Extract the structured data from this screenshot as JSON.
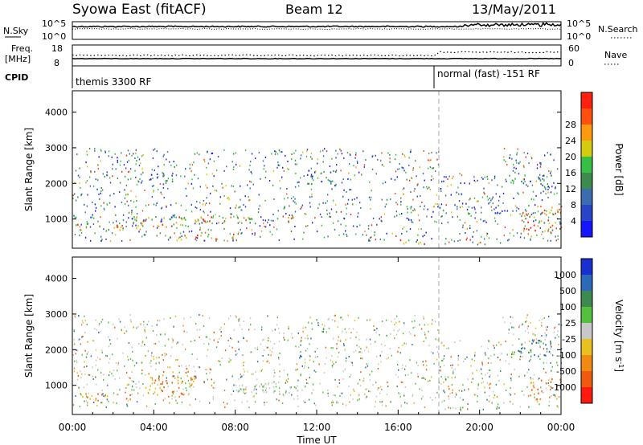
{
  "header": {
    "station": "Syowa East (fitACF)",
    "beam": "Beam 12",
    "date": "13/May/2011"
  },
  "top_panels": {
    "nsky_label": "N.Sky",
    "nsky_ticks": [
      "10^5",
      "10^0"
    ],
    "nsearch_label": "N.Search",
    "nsearch_ticks": [
      "10^5",
      "10^0"
    ],
    "freq_label_1": "Freq.",
    "freq_label_2": "[MHz]",
    "freq_ticks": [
      "18",
      "8"
    ],
    "nave_label": "Nave",
    "nave_ticks": [
      "60",
      "0"
    ],
    "cpid_label": "CPID",
    "cpid_segments": [
      {
        "label": "themis 3300 RF",
        "start_hour": 0,
        "end_hour": 18
      },
      {
        "label": "normal (fast) -151 RF",
        "start_hour": 18,
        "end_hour": 24
      }
    ]
  },
  "chart_data": [
    {
      "type": "heatmap",
      "name": "power",
      "ylabel": "Slant Range [km]",
      "xlabel": "",
      "yticks": [
        1000,
        2000,
        3000,
        4000
      ],
      "ylim": [
        180,
        4600
      ],
      "xlim": [
        0,
        24
      ],
      "colorbar_label": "Power [dB]",
      "colorbar_ticks": [
        4,
        8,
        12,
        16,
        20,
        24,
        28
      ],
      "colorbar_colors": [
        "#1515ff",
        "#2a44c8",
        "#3b6cb0",
        "#3c8a4c",
        "#35c045",
        "#d4cc10",
        "#ff9a10",
        "#ff5010",
        "#ff2010"
      ],
      "vertical_marker_hour": 18,
      "echo_regions": [
        {
          "t0": 0.0,
          "t1": 3.5,
          "r0": 700,
          "r1": 900,
          "level": "high"
        },
        {
          "t0": 3.0,
          "t1": 7.0,
          "r0": 800,
          "r1": 1100,
          "level": "high"
        },
        {
          "t0": 4.5,
          "t1": 8.0,
          "r0": 400,
          "r1": 600,
          "level": "high"
        },
        {
          "t0": 6.0,
          "t1": 11.0,
          "r0": 900,
          "r1": 1100,
          "level": "high"
        },
        {
          "t0": 3.5,
          "t1": 5.0,
          "r0": 2000,
          "r1": 2300,
          "level": "medium"
        },
        {
          "t0": 11.5,
          "t1": 13.0,
          "r0": 2000,
          "r1": 2400,
          "level": "medium"
        },
        {
          "t0": 16.0,
          "t1": 18.0,
          "r0": 300,
          "r1": 450,
          "level": "high"
        },
        {
          "t0": 22.0,
          "t1": 24.0,
          "r0": 600,
          "r1": 1400,
          "level": "high"
        },
        {
          "t0": 21.5,
          "t1": 23.5,
          "r0": 2000,
          "r1": 2300,
          "level": "medium"
        }
      ]
    },
    {
      "type": "heatmap",
      "name": "velocity",
      "ylabel": "Slant Range [km]",
      "xlabel": "Time UT",
      "yticks": [
        1000,
        2000,
        3000,
        4000
      ],
      "ylim": [
        180,
        4600
      ],
      "xlim": [
        0,
        24
      ],
      "xtick_labels": [
        "00:00",
        "04:00",
        "08:00",
        "12:00",
        "16:00",
        "20:00",
        "00:00"
      ],
      "colorbar_label": "Velocity [m s",
      "colorbar_unit_exp": "-1",
      "colorbar_unit_close": "]",
      "colorbar_ticks": [
        "1000",
        "500",
        "100",
        "25",
        "-25",
        "-100",
        "-500",
        "-1000"
      ],
      "colorbar_colors": [
        "#1a2fd0",
        "#2a6ab8",
        "#3c8a50",
        "#55c040",
        "#c8c8c8",
        "#e8c020",
        "#f08a10",
        "#f05a10",
        "#ff1a10"
      ],
      "vertical_marker_hour": 18,
      "echo_regions": [
        {
          "t0": 3.5,
          "t1": 6.0,
          "r0": 700,
          "r1": 1500,
          "level": "negative"
        },
        {
          "t0": 8.0,
          "t1": 12.0,
          "r0": 800,
          "r1": 1100,
          "level": "zero"
        },
        {
          "t0": 0.0,
          "t1": 3.0,
          "r0": 600,
          "r1": 800,
          "level": "negative"
        },
        {
          "t0": 22.5,
          "t1": 24.0,
          "r0": 600,
          "r1": 1200,
          "level": "negative"
        },
        {
          "t0": 21.5,
          "t1": 24.0,
          "r0": 1800,
          "r1": 2300,
          "level": "positive"
        }
      ]
    }
  ]
}
